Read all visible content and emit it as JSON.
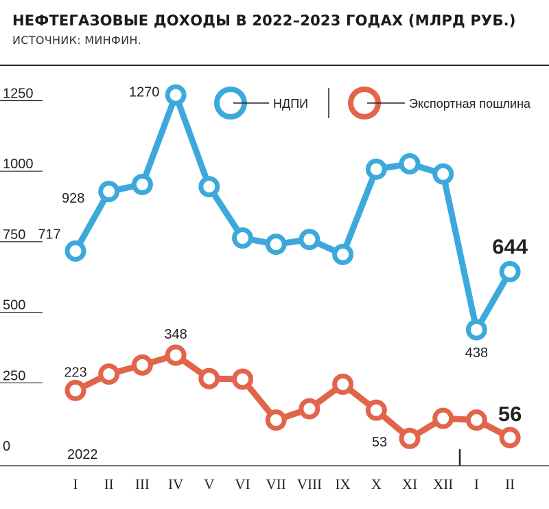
{
  "header": {
    "title": "НЕФТЕГАЗОВЫЕ ДОХОДЫ В 2022–2023 ГОДАХ (МЛРД РУБ.)",
    "subtitle": "ИСТОЧНИК: МИНФИН."
  },
  "chart_data": {
    "type": "line",
    "year_label": "2022",
    "categories": [
      "I",
      "II",
      "III",
      "IV",
      "V",
      "VI",
      "VII",
      "VIII",
      "IX",
      "X",
      "XI",
      "XII",
      "I",
      "II"
    ],
    "yticks": [
      0,
      250,
      500,
      750,
      1000,
      1250
    ],
    "ylim": [
      0,
      1300
    ],
    "legend_position": "top-right",
    "colors": {
      "ndpi": "#3ca9dc",
      "export": "#e2644a"
    },
    "series": [
      {
        "name": "НДПИ",
        "values": [
          717,
          928,
          953,
          1270,
          945,
          763,
          741,
          758,
          705,
          1007,
          1026,
          990,
          438,
          644
        ],
        "labels": [
          {
            "index": 0,
            "text": "717"
          },
          {
            "index": 1,
            "text": "928"
          },
          {
            "index": 3,
            "text": "1270"
          },
          {
            "index": 12,
            "text": "438"
          },
          {
            "index": 13,
            "text": "644"
          }
        ]
      },
      {
        "name": "Экспортная пошлина",
        "values": [
          223,
          281,
          313,
          348,
          265,
          263,
          118,
          158,
          245,
          153,
          53,
          124,
          118,
          56
        ],
        "labels": [
          {
            "index": 0,
            "text": "223"
          },
          {
            "index": 3,
            "text": "348"
          },
          {
            "index": 10,
            "text": "53"
          },
          {
            "index": 13,
            "text": "56"
          }
        ]
      }
    ]
  }
}
